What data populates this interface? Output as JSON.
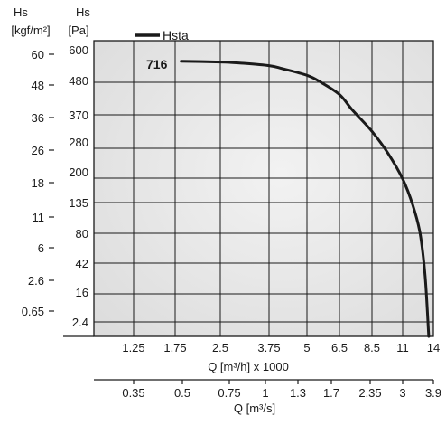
{
  "chart_data": {
    "type": "line",
    "title": "",
    "y_axes": [
      {
        "name": "Hs",
        "unit": "[kgf/m²]",
        "ticks": [
          "60",
          "48",
          "36",
          "26",
          "18",
          "11",
          "6",
          "2.6",
          "0.65"
        ]
      },
      {
        "name": "Hs",
        "unit": "[Pa]",
        "ticks": [
          "600",
          "480",
          "370",
          "280",
          "200",
          "135",
          "80",
          "42",
          "16",
          "2.4"
        ]
      }
    ],
    "x_axes": [
      {
        "label": "Q [m³/h] x 1000",
        "ticks": [
          "1.25",
          "1.75",
          "2.5",
          "3.75",
          "5",
          "6.5",
          "8.5",
          "11",
          "14"
        ]
      },
      {
        "label": "Q [m³/s]",
        "ticks": [
          "0.35",
          "0.5",
          "0.75",
          "1",
          "1.3",
          "1.7",
          "2.35",
          "3",
          "3.9"
        ]
      }
    ],
    "legend": {
      "placement": "top-left",
      "entries": [
        "Hsta"
      ]
    },
    "series": [
      {
        "name": "716",
        "legend_name": "Hsta",
        "color": "#1a1a1a",
        "x_unit": "m³/h x 1000",
        "points": [
          {
            "x": 1.85,
            "y": 555
          },
          {
            "x": 2.5,
            "y": 552
          },
          {
            "x": 3.0,
            "y": 548
          },
          {
            "x": 3.75,
            "y": 538
          },
          {
            "x": 4.2,
            "y": 526
          },
          {
            "x": 5.0,
            "y": 500
          },
          {
            "x": 5.6,
            "y": 476
          },
          {
            "x": 6.5,
            "y": 435
          },
          {
            "x": 7.3,
            "y": 385
          },
          {
            "x": 8.5,
            "y": 315
          },
          {
            "x": 9.8,
            "y": 250
          },
          {
            "x": 11.0,
            "y": 185
          },
          {
            "x": 12.0,
            "y": 130
          },
          {
            "x": 12.7,
            "y": 80
          },
          {
            "x": 13.2,
            "y": 30
          },
          {
            "x": 13.55,
            "y": 2.4
          }
        ]
      }
    ],
    "grid": true,
    "background_color": "#e6e6e6",
    "grid_color": "#1a1a1a"
  }
}
